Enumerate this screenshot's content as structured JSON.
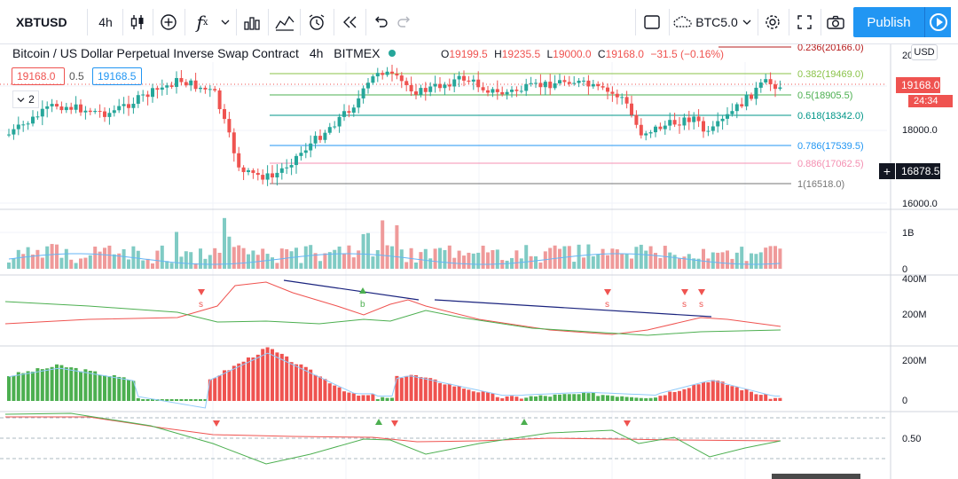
{
  "toolbar": {
    "symbol": "XBTUSD",
    "interval": "4h",
    "compare_symbol": "BTC5.0",
    "publish_label": "Publish"
  },
  "legend": {
    "title": "Bitcoin / US Dollar Perpetual Inverse Swap Contract",
    "interval": "4h",
    "exchange": "BITMEX",
    "open_label": "O",
    "open": "19199.5",
    "high_label": "H",
    "high": "19235.5",
    "low_label": "L",
    "low": "19000.0",
    "close_label": "C",
    "close": "19168.0",
    "change": "−31.5 (−0.16%)",
    "bid": "19168.0",
    "spread": "0.5",
    "ask": "19168.5",
    "indicators_count": "2"
  },
  "price_axis": {
    "currency": "USD",
    "top_label": "20",
    "labels": [
      "18000.0",
      "16000.0"
    ],
    "last_price": "19168.0",
    "countdown": "24:34",
    "crosshair_price": "16878.5"
  },
  "fib_levels": [
    {
      "label": "0.236(20166.0)",
      "color": "#b71c1c"
    },
    {
      "label": "0.382(19469.0)",
      "color": "#8bc34a"
    },
    {
      "label": "0.5(18905.5)",
      "color": "#4caf50"
    },
    {
      "label": "0.618(18342.0)",
      "color": "#009688"
    },
    {
      "label": "0.786(17539.5)",
      "color": "#2196f3"
    },
    {
      "label": "0.886(17062.5)",
      "color": "#f48fb1"
    },
    {
      "label": "1(16518.0)",
      "color": "#757575"
    }
  ],
  "volume_axis": {
    "top": "1B",
    "bottom": "0"
  },
  "osc1_axis": {
    "top": "400M",
    "mid": "200M"
  },
  "osc1_markers": [
    {
      "type": "s",
      "color": "#ef5350"
    },
    {
      "type": "b",
      "color": "#4caf50"
    },
    {
      "type": "s",
      "color": "#ef5350"
    },
    {
      "type": "s",
      "color": "#ef5350"
    },
    {
      "type": "s",
      "color": "#ef5350"
    }
  ],
  "osc2_axis": {
    "top": "200M",
    "bottom": "0"
  },
  "osc3_axis": {
    "mid": "0.50"
  },
  "colors": {
    "up": "#26a69a",
    "down": "#ef5350",
    "accent": "#2196f3",
    "hist_up": "#4caf50",
    "hist_down": "#ef5350"
  },
  "icons": {
    "candle": "candlestick-icon",
    "add": "plus-circle-icon",
    "fx": "indicators-icon",
    "bars": "bar-style-icon",
    "templates": "templates-icon",
    "alert": "alarm-icon",
    "replay": "replay-icon",
    "undo": "undo-icon",
    "redo": "redo-icon",
    "layout": "layout-square-icon",
    "cloud": "cloud-icon",
    "settings": "gear-icon",
    "fullscreen": "fullscreen-icon",
    "snapshot": "camera-icon"
  }
}
